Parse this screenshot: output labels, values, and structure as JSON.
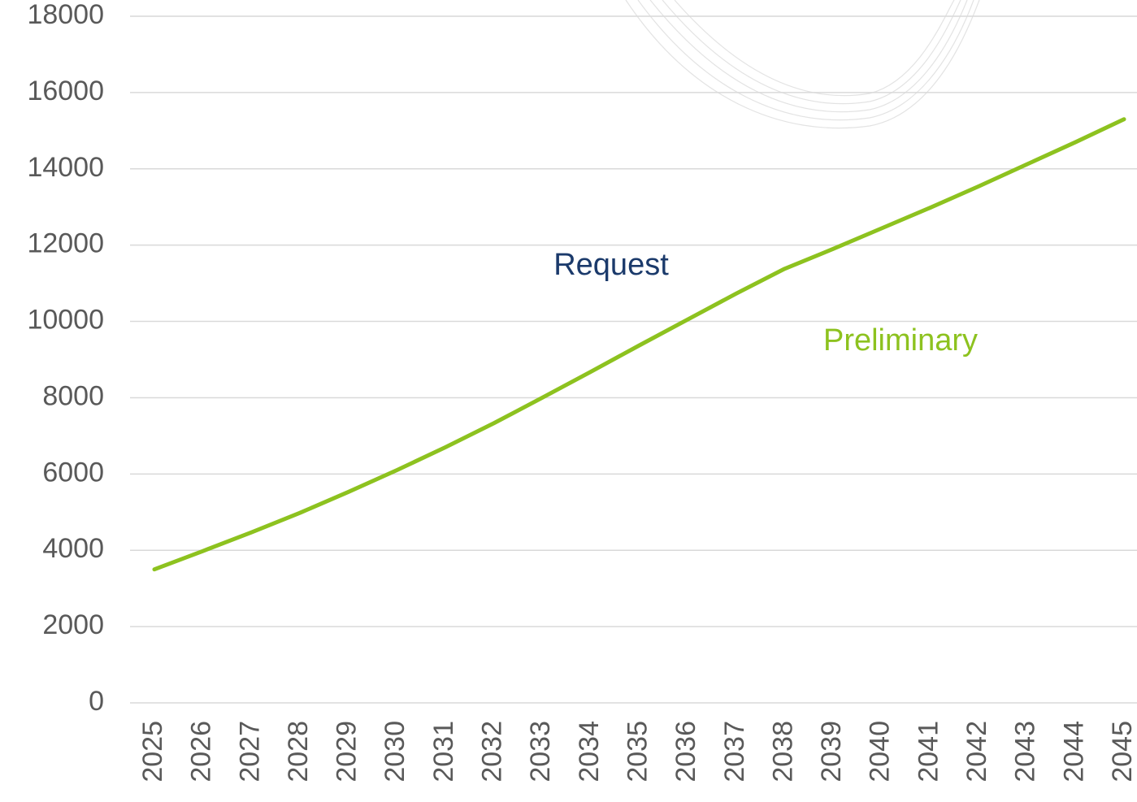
{
  "chart_data": {
    "type": "line",
    "categories": [
      "2025",
      "2026",
      "2027",
      "2028",
      "2029",
      "2030",
      "2031",
      "2032",
      "2033",
      "2034",
      "2035",
      "2036",
      "2037",
      "2038",
      "2039",
      "2040",
      "2041",
      "2042",
      "2043",
      "2044",
      "2045"
    ],
    "series": [
      {
        "name": "Preliminary",
        "color": "#8dc21f",
        "values": [
          3500,
          3980,
          4470,
          4980,
          5530,
          6100,
          6700,
          7330,
          8000,
          8680,
          9370,
          10050,
          10730,
          11380,
          11900,
          12440,
          12980,
          13540,
          14120,
          14700,
          15300
        ]
      }
    ],
    "annotations": [
      {
        "text": "Request",
        "color": "#1b3a6b"
      }
    ],
    "ylim": [
      0,
      18000
    ],
    "yticks": [
      0,
      2000,
      4000,
      6000,
      8000,
      10000,
      12000,
      14000,
      16000,
      18000
    ],
    "grid": true
  }
}
